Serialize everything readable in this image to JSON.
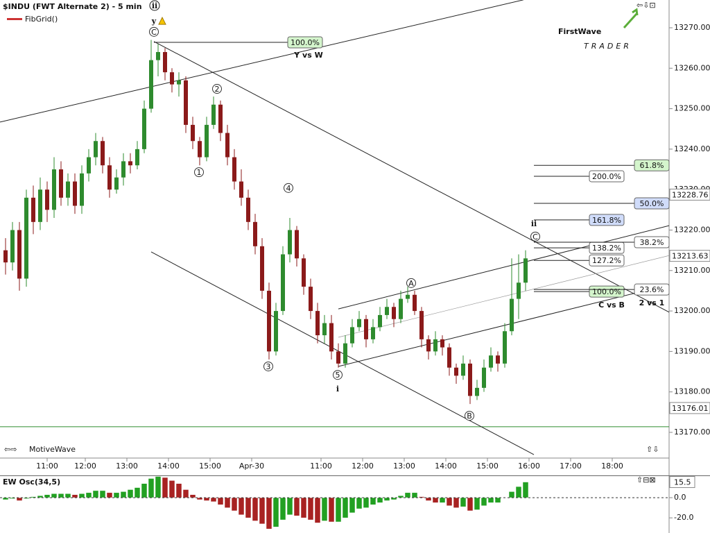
{
  "header": {
    "title": "$INDU (FWT Alternate 2) - 5 min",
    "title_wave": "ii",
    "indicator": "FibGrid()",
    "footer": "MotiveWave",
    "logo": "FirstWave",
    "logo_sub": "TRADER"
  },
  "chart_data": {
    "type": "candlestick",
    "x": [
      0,
      2,
      4,
      6,
      8,
      10,
      12,
      14,
      16,
      18,
      20,
      22,
      24,
      26,
      28,
      30,
      32,
      34,
      36,
      38,
      40,
      42,
      44,
      46,
      48,
      50,
      52,
      54,
      56,
      58,
      60,
      62,
      64,
      66,
      68,
      70,
      72,
      74,
      76,
      78,
      80,
      82,
      84,
      86,
      88,
      90,
      92,
      94,
      96,
      98,
      100,
      102,
      104,
      106,
      108,
      110,
      112,
      114,
      116,
      118,
      120,
      122,
      124,
      126,
      128,
      130,
      132,
      134,
      136,
      138,
      140,
      142,
      144,
      146,
      148,
      150
    ],
    "candles": [
      [
        13215,
        13218,
        13209,
        13212
      ],
      [
        13212,
        13222,
        13210,
        13220
      ],
      [
        13220,
        13222,
        13205,
        13208
      ],
      [
        13208,
        13230,
        13206,
        13228
      ],
      [
        13228,
        13231,
        13219,
        13222
      ],
      [
        13222,
        13233,
        13220,
        13230
      ],
      [
        13230,
        13232,
        13222,
        13225
      ],
      [
        13225,
        13238,
        13223,
        13235
      ],
      [
        13235,
        13237,
        13226,
        13228
      ],
      [
        13228,
        13234,
        13226,
        13232
      ],
      [
        13232,
        13234,
        13224,
        13226
      ],
      [
        13226,
        13236,
        13224,
        13234
      ],
      [
        13234,
        13240,
        13232,
        13238
      ],
      [
        13238,
        13244,
        13236,
        13242
      ],
      [
        13242,
        13243,
        13234,
        13236
      ],
      [
        13236,
        13238,
        13228,
        13230
      ],
      [
        13230,
        13235,
        13229,
        13233
      ],
      [
        13233,
        13239,
        13231,
        13237
      ],
      [
        13237,
        13239,
        13234,
        13236
      ],
      [
        13236,
        13242,
        13235,
        13240
      ],
      [
        13240,
        13252,
        13239,
        13250
      ],
      [
        13250,
        13267,
        13249,
        13262
      ],
      [
        13262,
        13266,
        13258,
        13264
      ],
      [
        13264,
        13265,
        13257,
        13259
      ],
      [
        13259,
        13260,
        13254,
        13256
      ],
      [
        13256,
        13259,
        13253,
        13257
      ],
      [
        13257,
        13258,
        13244,
        13246
      ],
      [
        13246,
        13248,
        13240,
        13242
      ],
      [
        13242,
        13243,
        13236,
        13238
      ],
      [
        13238,
        13248,
        13237,
        13246
      ],
      [
        13246,
        13253,
        13245,
        13251
      ],
      [
        13251,
        13252,
        13242,
        13244
      ],
      [
        13244,
        13246,
        13236,
        13238
      ],
      [
        13238,
        13240,
        13230,
        13232
      ],
      [
        13232,
        13235,
        13226,
        13228
      ],
      [
        13228,
        13230,
        13220,
        13222
      ],
      [
        13222,
        13224,
        13214,
        13216
      ],
      [
        13216,
        13218,
        13203,
        13205
      ],
      [
        13205,
        13207,
        13188,
        13190
      ],
      [
        13190,
        13202,
        13189,
        13200
      ],
      [
        13200,
        13216,
        13199,
        13214
      ],
      [
        13214,
        13223,
        13212,
        13220
      ],
      [
        13220,
        13221,
        13211,
        13213
      ],
      [
        13213,
        13214,
        13204,
        13206
      ],
      [
        13206,
        13208,
        13198,
        13200
      ],
      [
        13200,
        13202,
        13192,
        13194
      ],
      [
        13194,
        13199,
        13192,
        13197
      ],
      [
        13197,
        13199,
        13188,
        13190
      ],
      [
        13190,
        13192,
        13186,
        13187
      ],
      [
        13187,
        13194,
        13186,
        13192
      ],
      [
        13192,
        13198,
        13191,
        13196
      ],
      [
        13196,
        13200,
        13195,
        13198
      ],
      [
        13198,
        13199,
        13191,
        13193
      ],
      [
        13193,
        13198,
        13192,
        13196
      ],
      [
        13196,
        13201,
        13195,
        13199
      ],
      [
        13199,
        13203,
        13198,
        13201
      ],
      [
        13201,
        13202,
        13196,
        13198
      ],
      [
        13198,
        13205,
        13197,
        13203
      ],
      [
        13203,
        13206,
        13202,
        13204
      ],
      [
        13204,
        13205,
        13199,
        13200
      ],
      [
        13200,
        13201,
        13191,
        13193
      ],
      [
        13193,
        13194,
        13188,
        13190
      ],
      [
        13190,
        13195,
        13189,
        13193
      ],
      [
        13193,
        13194,
        13189,
        13191
      ],
      [
        13191,
        13192,
        13184,
        13186
      ],
      [
        13186,
        13187,
        13182,
        13184
      ],
      [
        13184,
        13189,
        13183,
        13187
      ],
      [
        13187,
        13188,
        13177,
        13179
      ],
      [
        13179,
        13183,
        13178,
        13181
      ],
      [
        13181,
        13188,
        13180,
        13186
      ],
      [
        13186,
        13191,
        13185,
        13189
      ],
      [
        13189,
        13190,
        13185,
        13187
      ],
      [
        13187,
        13197,
        13186,
        13195
      ],
      [
        13195,
        13213,
        13194,
        13203
      ],
      [
        13203,
        13214,
        13198,
        13207
      ],
      [
        13207,
        13215,
        13205,
        13213
      ]
    ],
    "up_color": "#2e8b2e",
    "down_color": "#8b1a1a",
    "xlim": [
      -1.6,
      191.4
    ],
    "xticks": [
      {
        "value": 12,
        "label": "11:00"
      },
      {
        "value": 23,
        "label": "12:00"
      },
      {
        "value": 35,
        "label": "13:00"
      },
      {
        "value": 47,
        "label": "14:00"
      },
      {
        "value": 59,
        "label": "15:00"
      },
      {
        "value": 71,
        "label": "Apr-30"
      },
      {
        "value": 91,
        "label": "11:00"
      },
      {
        "value": 103,
        "label": "12:00"
      },
      {
        "value": 115,
        "label": "13:00"
      },
      {
        "value": 127,
        "label": "14:00"
      },
      {
        "value": 139,
        "label": "15:00"
      },
      {
        "value": 151,
        "label": "16:00"
      },
      {
        "value": 163,
        "label": "17:00"
      },
      {
        "value": 175,
        "label": "18:00"
      }
    ],
    "ylim": [
      13163.65,
      13276.86
    ],
    "yticks": [
      {
        "value": 13170,
        "label": "13170.00"
      },
      {
        "value": 13180,
        "label": "13180.00"
      },
      {
        "value": 13190,
        "label": "13190.00"
      },
      {
        "value": 13200,
        "label": "13200.00"
      },
      {
        "value": 13210,
        "label": "13210.00"
      },
      {
        "value": 13220,
        "label": "13220.00"
      },
      {
        "value": 13230,
        "label": "13230.00"
      },
      {
        "value": 13240,
        "label": "13240.00"
      },
      {
        "value": 13250,
        "label": "13250.00"
      },
      {
        "value": 13260,
        "label": "13260.00"
      },
      {
        "value": 13270,
        "label": "13270.00"
      }
    ],
    "price_markers": [
      {
        "value": 13228.76,
        "label": "13228.76"
      },
      {
        "value": 13213.63,
        "label": "13213.63"
      },
      {
        "value": 13176.01,
        "label": "13176.01"
      }
    ],
    "horizontal_line": 13171.4,
    "horizontal_line_color": "#2e8b2e",
    "trend_lines": [
      [
        -1.6,
        13246.7,
        149.4,
        13276.9
      ],
      [
        42.8,
        13266.6,
        191.4,
        13199.7
      ],
      [
        42,
        13214.6,
        152.4,
        13164.5
      ],
      [
        96,
        13200.5,
        191.4,
        13221.1
      ],
      [
        96,
        13186.3,
        191.4,
        13206.5
      ]
    ],
    "mid_line": [
      96,
      13193.5,
      191.4,
      13213.7
    ],
    "fib_ref": {
      "label": "100.0%",
      "price": 13266.4,
      "start": 42.8,
      "color": "#d4f5cc",
      "caption": "Y vs W"
    },
    "fib_extensions": {
      "caption": "C vs B",
      "start": 152.4,
      "levels": [
        {
          "label": "200.0%",
          "price": 13233.3,
          "color": "#ffffff"
        },
        {
          "label": "161.8%",
          "price": 13222.5,
          "color": "#d0dcfa"
        },
        {
          "label": "138.2%",
          "price": 13215.6,
          "color": "#ffffff"
        },
        {
          "label": "127.2%",
          "price": 13212.5,
          "color": "#ffffff"
        },
        {
          "label": "100.0%",
          "price": 13204.8,
          "color": "#d4f5cc"
        }
      ]
    },
    "fib_retracements": {
      "caption": "2 vs 1",
      "start": 152.4,
      "levels": [
        {
          "label": "61.8%",
          "price": 13236.0,
          "color": "#d4f5cc"
        },
        {
          "label": "50.0%",
          "price": 13226.6,
          "color": "#d0dcfa"
        },
        {
          "label": "38.2%",
          "price": 13217.0,
          "color": "#ffffff"
        },
        {
          "label": "23.6%",
          "price": 13205.3,
          "color": "#ffffff"
        }
      ]
    },
    "annotations": [
      {
        "text": "C",
        "x": 42.8,
        "price": 13269.0,
        "circled": true
      },
      {
        "text": "y",
        "x": 42.8,
        "price": 13271.7,
        "circled": false,
        "warning": true
      },
      {
        "text": "1",
        "x": 55.8,
        "price": 13234.3,
        "circled": true
      },
      {
        "text": "2",
        "x": 61,
        "price": 13254.9,
        "circled": true
      },
      {
        "text": "3",
        "x": 75.8,
        "price": 13186.3,
        "circled": true
      },
      {
        "text": "4",
        "x": 81.6,
        "price": 13230.4,
        "circled": true
      },
      {
        "text": "5",
        "x": 95.8,
        "price": 13184.2,
        "circled": true
      },
      {
        "text": "i",
        "x": 95.8,
        "price": 13180.8,
        "circled": false
      },
      {
        "text": "A",
        "x": 117,
        "price": 13206.9,
        "circled": true
      },
      {
        "text": "B",
        "x": 133.8,
        "price": 13174.1,
        "circled": true
      },
      {
        "text": "C",
        "x": 152.8,
        "price": 13218.4,
        "circled": true
      },
      {
        "text": "ii",
        "x": 152.4,
        "price": 13221.6,
        "circled": false
      }
    ]
  },
  "oscillator": {
    "type": "bar",
    "title": "EW Osc(34,5)",
    "values": [
      -2,
      -1,
      -3,
      -1,
      1,
      2,
      3,
      4,
      4,
      4,
      3,
      4,
      5,
      7,
      7,
      5,
      5,
      6,
      8,
      10,
      14,
      19,
      21,
      20,
      17,
      14,
      8,
      3,
      -2,
      -3,
      -4,
      -7,
      -10,
      -13,
      -17,
      -20,
      -23,
      -26,
      -31,
      -29,
      -22,
      -17,
      -18,
      -20,
      -22,
      -25,
      -23,
      -24,
      -24,
      -20,
      -15,
      -11,
      -10,
      -7,
      -5,
      -3,
      -2,
      2,
      5,
      5,
      1,
      -3,
      -5,
      -5,
      -8,
      -10,
      -9,
      -13,
      -12,
      -8,
      -5,
      -5,
      0,
      6,
      11,
      15.5
    ],
    "last_label": "15.5",
    "up_color": "#22a022",
    "down_color": "#a82222",
    "ylim": [
      -35,
      20
    ],
    "yticks": [
      {
        "value": 0,
        "label": "0.0"
      },
      {
        "value": -20,
        "label": "-20.0"
      }
    ]
  }
}
